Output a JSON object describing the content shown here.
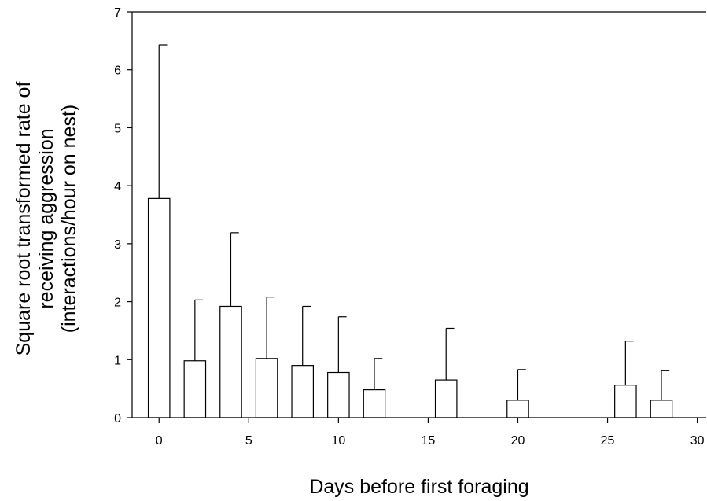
{
  "chart_data": {
    "type": "bar",
    "xlabel": "Days before first foraging",
    "ylabel_lines": [
      "Square root transformed rate of",
      "receiving aggression",
      "(interactions/hour on nest)"
    ],
    "xlim": [
      -1.5,
      30.5
    ],
    "ylim": [
      0,
      7
    ],
    "xticks": [
      0,
      5,
      10,
      15,
      20,
      25,
      30
    ],
    "yticks": [
      0,
      1,
      2,
      3,
      4,
      5,
      6,
      7
    ],
    "bar_width": 1.2,
    "bars": [
      {
        "x": 0,
        "value": 3.78,
        "error_upper": 6.43
      },
      {
        "x": 2,
        "value": 0.98,
        "error_upper": 2.03
      },
      {
        "x": 4,
        "value": 1.92,
        "error_upper": 3.19
      },
      {
        "x": 6,
        "value": 1.02,
        "error_upper": 2.08
      },
      {
        "x": 8,
        "value": 0.9,
        "error_upper": 1.92
      },
      {
        "x": 10,
        "value": 0.78,
        "error_upper": 1.74
      },
      {
        "x": 12,
        "value": 0.48,
        "error_upper": 1.02
      },
      {
        "x": 16,
        "value": 0.65,
        "error_upper": 1.54
      },
      {
        "x": 20,
        "value": 0.3,
        "error_upper": 0.83
      },
      {
        "x": 26,
        "value": 0.56,
        "error_upper": 1.32
      },
      {
        "x": 28,
        "value": 0.3,
        "error_upper": 0.81
      }
    ],
    "grid": false,
    "legend": "none"
  }
}
